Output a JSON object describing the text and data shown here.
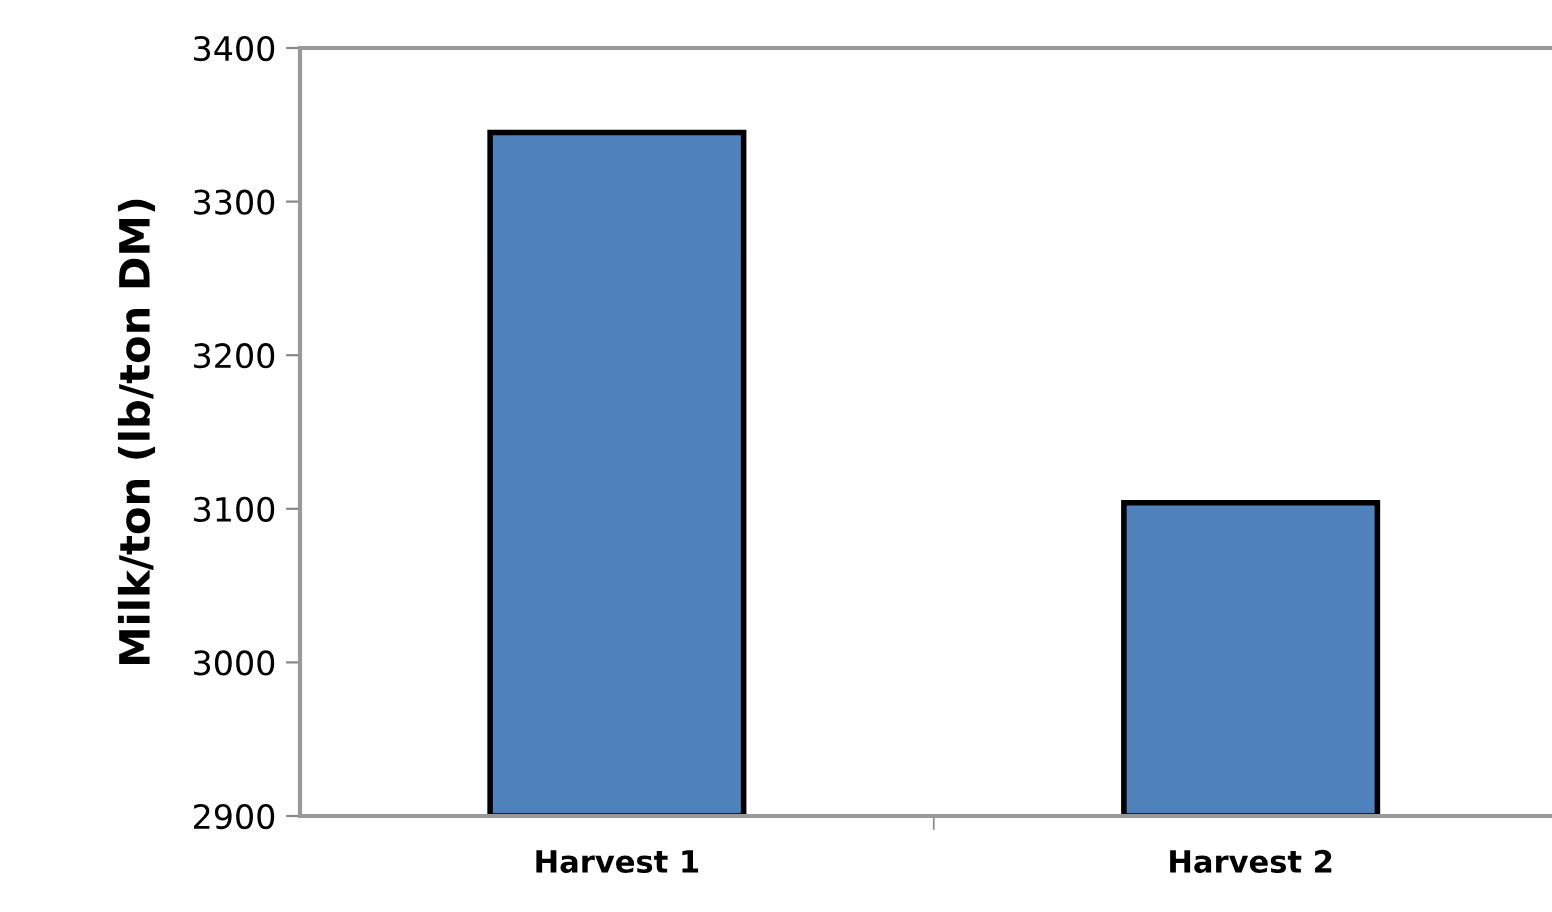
{
  "chart_data": {
    "type": "bar",
    "ylabel": "Milk/ton (lb/ton DM)",
    "categories": [
      "Harvest 1",
      "Harvest 2"
    ],
    "values": [
      3345,
      3104
    ],
    "color": "#4f81bd",
    "ylim": [
      2900,
      3400
    ],
    "yticks": [
      2900,
      3000,
      3100,
      3200,
      3300,
      3400
    ],
    "grid": false,
    "legend": false
  }
}
